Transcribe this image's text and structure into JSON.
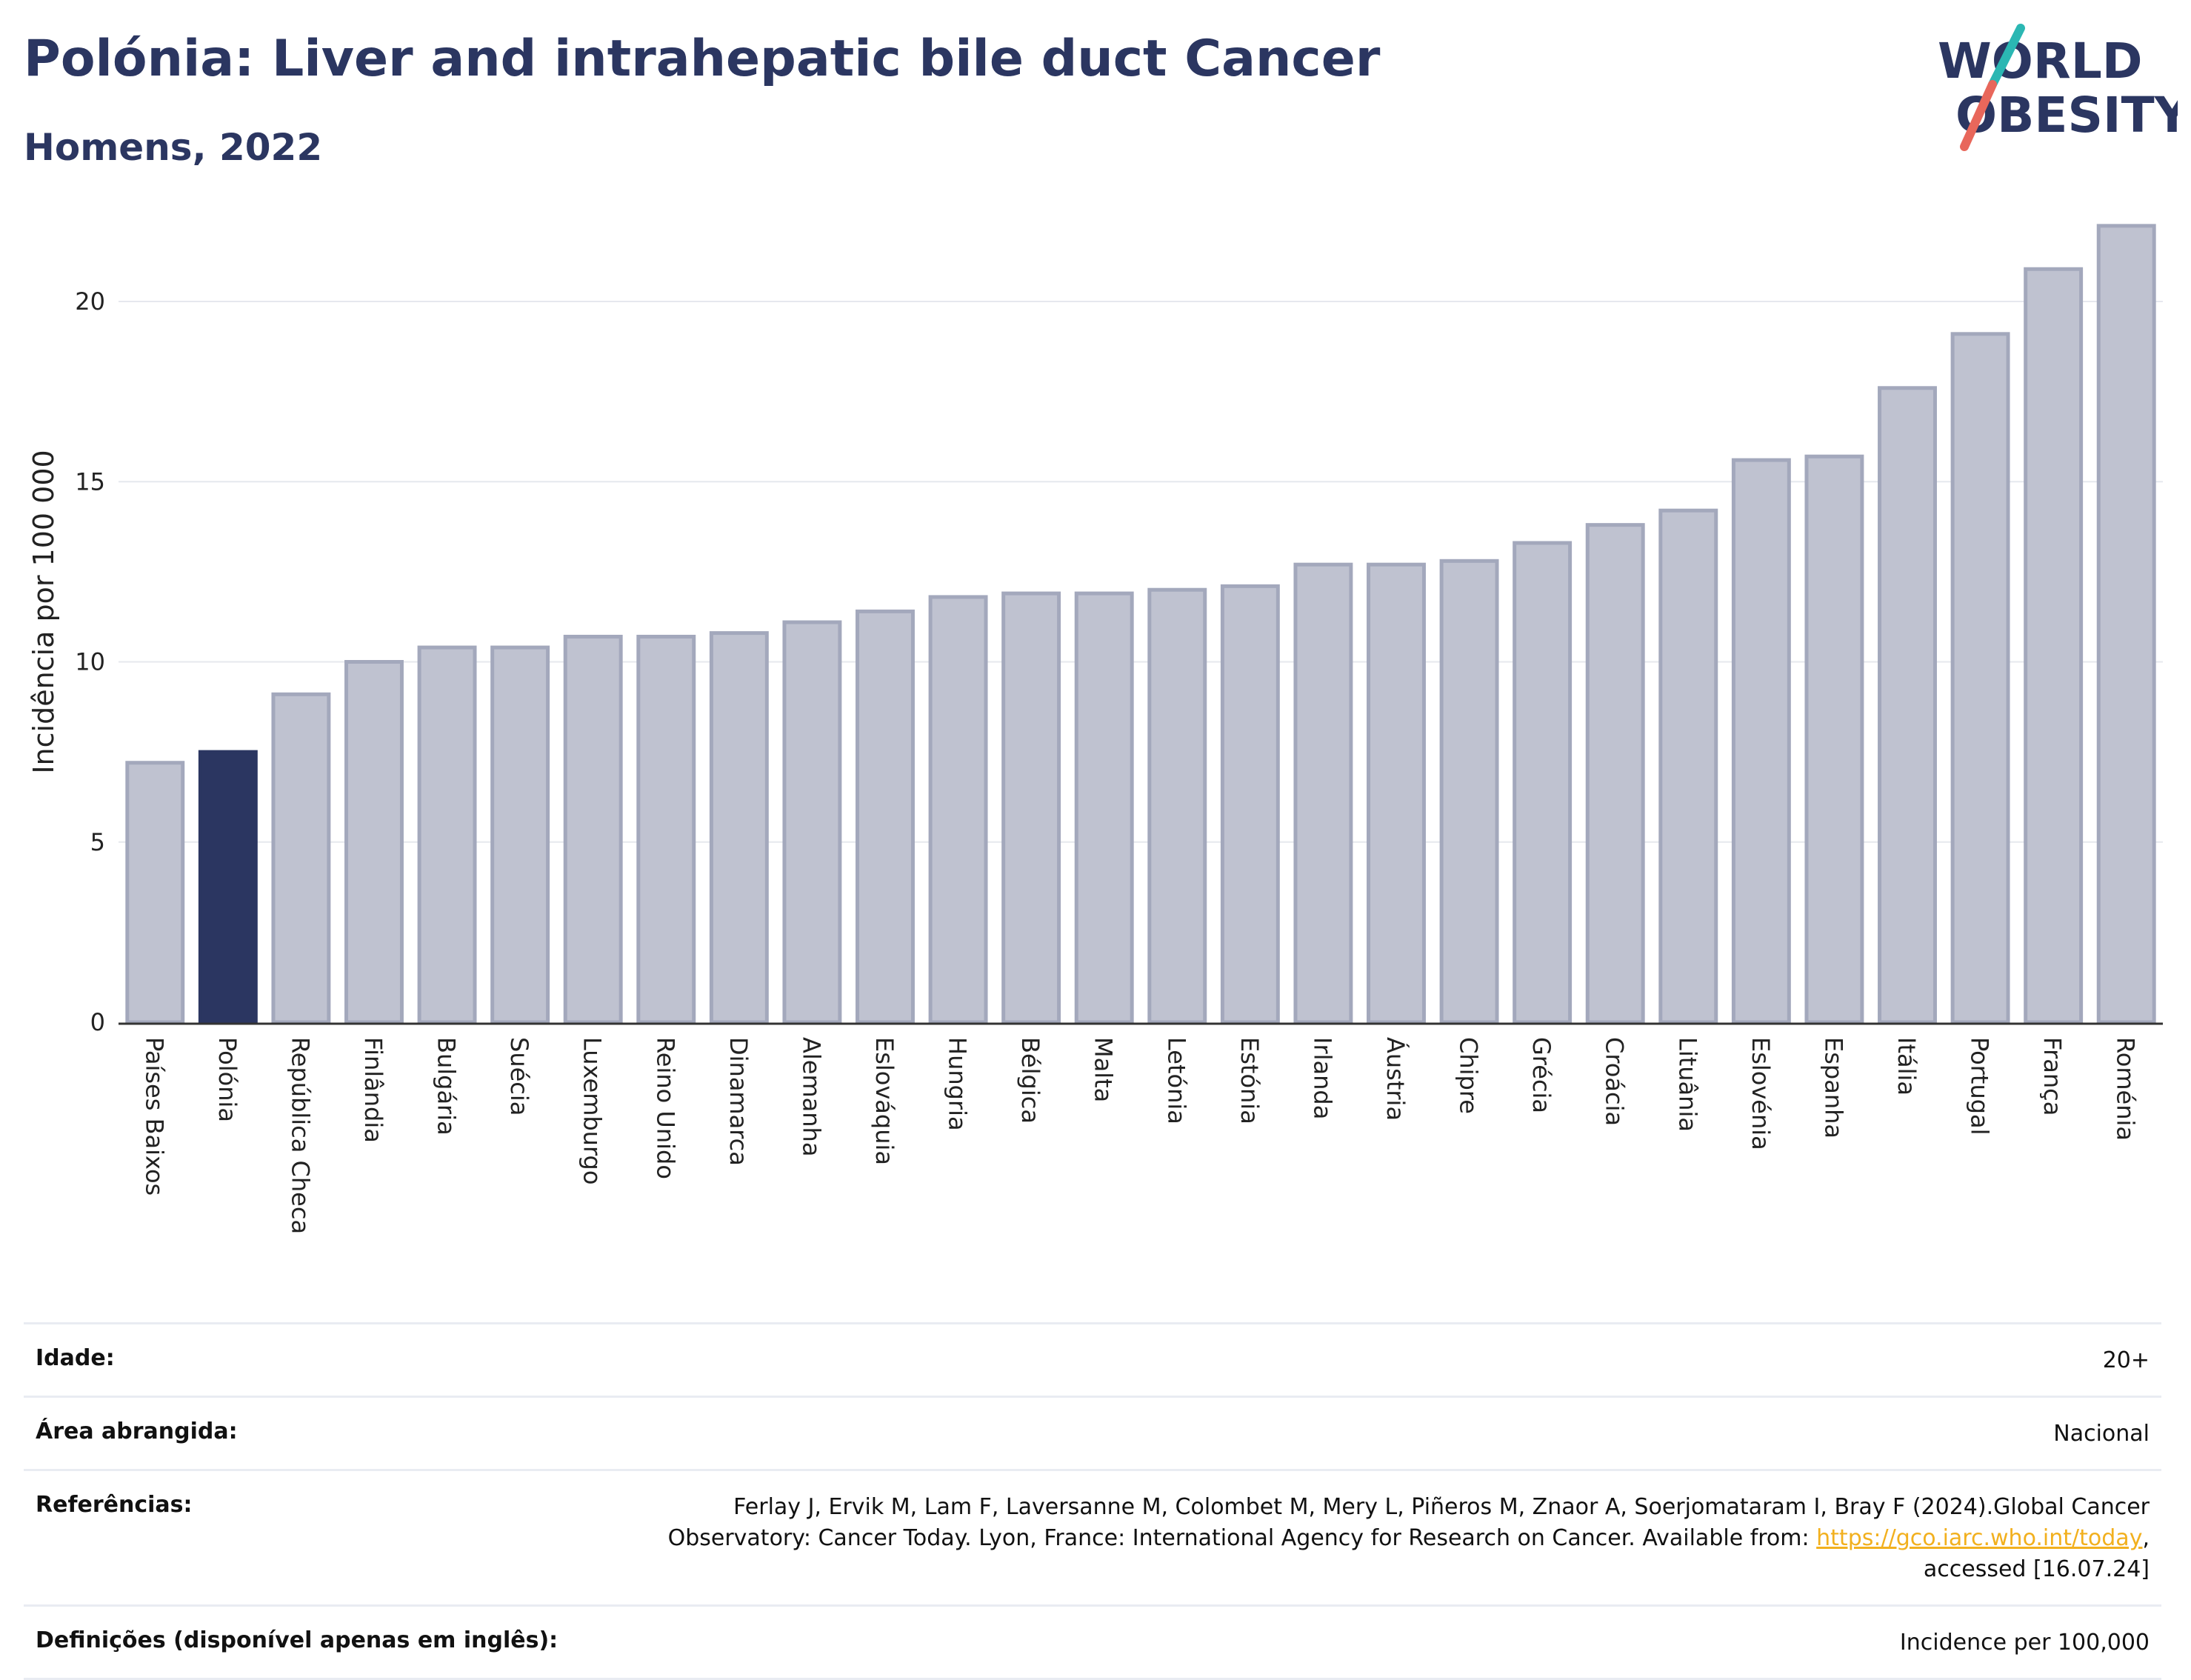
{
  "header": {
    "title": "Polónia: Liver and intrahepatic bile duct Cancer",
    "subtitle": "Homens, 2022"
  },
  "logo": {
    "line1": "WORLD",
    "line2": "OBESITY",
    "slash_color_top": "#2bb7b3",
    "slash_color_bottom": "#e8675b"
  },
  "chart_data": {
    "type": "bar",
    "title": "Polónia: Liver and intrahepatic bile duct Cancer",
    "subtitle": "Homens, 2022",
    "xlabel": "",
    "ylabel": "Incidência por 100 000",
    "ylim": [
      0,
      22.2
    ],
    "yticks": [
      0,
      5,
      10,
      15,
      20
    ],
    "grid": true,
    "highlight": "Polónia",
    "colors": {
      "default": "#bfc2d0",
      "default_edge": "#a3a8bc",
      "highlight": "#2b3661"
    },
    "categories": [
      "Países Baixos",
      "Polónia",
      "República Checa",
      "Finlândia",
      "Bulgária",
      "Suécia",
      "Luxemburgo",
      "Reino Unido",
      "Dinamarca",
      "Alemanha",
      "Eslováquia",
      "Hungria",
      "Bélgica",
      "Malta",
      "Letónia",
      "Estónia",
      "Irlanda",
      "Áustria",
      "Chipre",
      "Grécia",
      "Croácia",
      "Lituânia",
      "Eslovénia",
      "Espanha",
      "Itália",
      "Portugal",
      "França",
      "Roménia"
    ],
    "values": [
      7.2,
      7.5,
      9.1,
      10.0,
      10.4,
      10.4,
      10.7,
      10.7,
      10.8,
      11.1,
      11.4,
      11.8,
      11.9,
      11.9,
      12.0,
      12.1,
      12.7,
      12.7,
      12.8,
      13.3,
      13.8,
      14.2,
      15.6,
      15.7,
      17.6,
      19.1,
      20.9,
      22.1
    ]
  },
  "meta": {
    "rows": [
      {
        "key": "Idade:",
        "value": "20+"
      },
      {
        "key": "Área abrangida:",
        "value": "Nacional"
      }
    ],
    "references": {
      "key": "Referências:",
      "text_before": "Ferlay J, Ervik M, Lam F, Laversanne M, Colombet M, Mery L, Piñeros M, Znaor A, Soerjomataram I, Bray F (2024).Global Cancer Observatory: Cancer Today. Lyon, France: International Agency for Research on Cancer. Available from: ",
      "link": "https://gco.iarc.who.int/today",
      "text_after": ", accessed [16.07.24]"
    },
    "definitions": {
      "key": "Definições (disponível apenas em inglês):",
      "value": "Incidence per 100,000"
    }
  }
}
